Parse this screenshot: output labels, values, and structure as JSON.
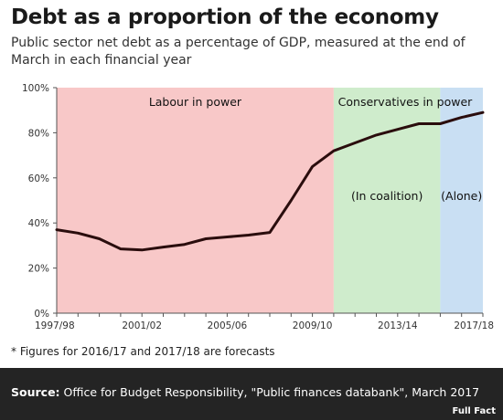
{
  "header": {
    "title": "Debt as a proportion of the economy",
    "subtitle": "Public sector net debt as a percentage of GDP, measured at the end of March in each financial year"
  },
  "chart_data": {
    "type": "line",
    "title": "Debt as a proportion of the economy",
    "xlabel": "",
    "ylabel": "",
    "ylim": [
      0,
      100
    ],
    "yticks": [
      "0%",
      "20%",
      "40%",
      "60%",
      "80%",
      "100%"
    ],
    "xtick_labels": [
      "1997/98",
      "2001/02",
      "2005/06",
      "2009/10",
      "2013/14",
      "2017/18"
    ],
    "x": [
      "1997/98",
      "1998/99",
      "1999/00",
      "2000/01",
      "2001/02",
      "2002/03",
      "2003/04",
      "2004/05",
      "2005/06",
      "2006/07",
      "2007/08",
      "2008/09",
      "2009/10",
      "2010/11",
      "2011/12",
      "2012/13",
      "2013/14",
      "2014/15",
      "2015/16",
      "2016/17",
      "2017/18"
    ],
    "series": [
      {
        "values": [
          37,
          35.5,
          33,
          28.5,
          28,
          29.3,
          30.5,
          33,
          33.8,
          34.6,
          35.8,
          50,
          65,
          72,
          75.5,
          79,
          81.5,
          84,
          84,
          86.8,
          89
        ]
      }
    ],
    "regions": [
      {
        "label": "Labour in power",
        "from": "1997/98",
        "to": "2010/11",
        "color": "#f8c8c8"
      },
      {
        "label": "Conservatives in power",
        "sublabel": "(In coalition)",
        "from": "2010/11",
        "to": "2015/16",
        "color": "#cfeccc"
      },
      {
        "label": "",
        "sublabel": "(Alone)",
        "from": "2015/16",
        "to": "2017/18",
        "color": "#c9dff3"
      }
    ],
    "line_color": "#2a0d0d",
    "grid": false,
    "legend": "none"
  },
  "note": "* Figures for 2016/17 and 2017/18 are forecasts",
  "footer": {
    "source_label": "Source:",
    "source_text": "Office for Budget Responsibility, \"Public finances databank\", March 2017",
    "brand": "Full Fact"
  }
}
